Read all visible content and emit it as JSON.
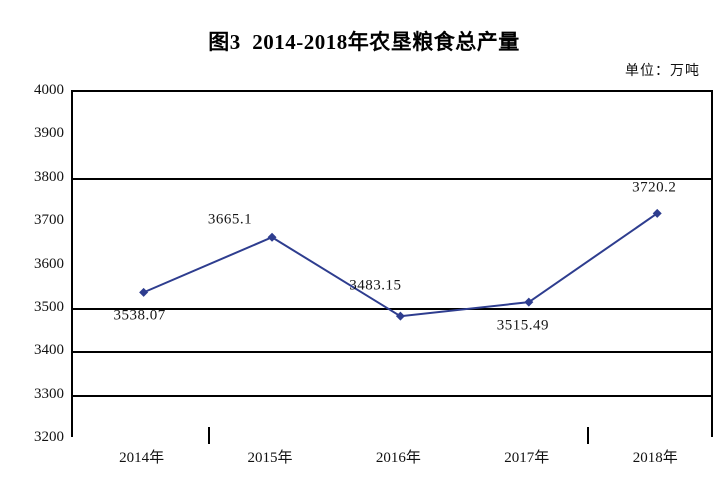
{
  "title": "图3  2014-2018年农垦粮食总产量",
  "unit_label": "单位：万吨",
  "chart_data": {
    "type": "line",
    "title": "图3  2014-2018年农垦粮食总产量",
    "unit": "万吨",
    "categories": [
      "2014年",
      "2015年",
      "2016年",
      "2017年",
      "2018年"
    ],
    "series": [
      {
        "name": "农垦粮食总产量",
        "values": [
          3538.07,
          3665.1,
          3483.15,
          3515.49,
          3720.2
        ]
      }
    ],
    "data_labels": [
      "3538.07",
      "3665.1",
      "3483.15",
      "3515.49",
      "3720.2"
    ],
    "xlabel": "",
    "ylabel": "",
    "ylim": [
      3200,
      4000
    ],
    "yticks": [
      4000,
      3900,
      3800,
      3700,
      3600,
      3500,
      3400,
      3300,
      3200
    ],
    "gridlines_at": [
      3800,
      3500,
      3400,
      3300
    ],
    "legend_position": "none",
    "line_color": "#2e3d8f",
    "axis_color": "#000000"
  }
}
